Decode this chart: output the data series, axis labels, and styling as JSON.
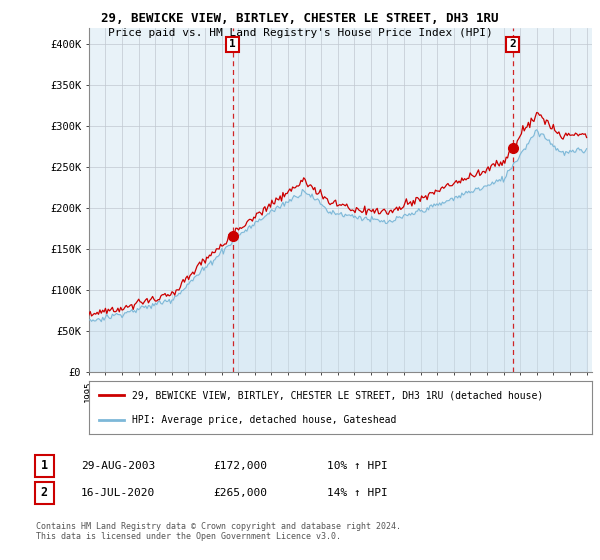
{
  "title1": "29, BEWICKE VIEW, BIRTLEY, CHESTER LE STREET, DH3 1RU",
  "title2": "Price paid vs. HM Land Registry's House Price Index (HPI)",
  "ylabel_ticks": [
    "£0",
    "£50K",
    "£100K",
    "£150K",
    "£200K",
    "£250K",
    "£300K",
    "£350K",
    "£400K"
  ],
  "ytick_values": [
    0,
    50000,
    100000,
    150000,
    200000,
    250000,
    300000,
    350000,
    400000
  ],
  "ylim": [
    0,
    420000
  ],
  "hpi_color": "#7db8d8",
  "hpi_fill_color": "#c8e0f0",
  "price_color": "#cc0000",
  "marker1_x": 2003.667,
  "marker2_x": 2020.54,
  "legend_line1": "29, BEWICKE VIEW, BIRTLEY, CHESTER LE STREET, DH3 1RU (detached house)",
  "legend_line2": "HPI: Average price, detached house, Gateshead",
  "table_row1_num": "1",
  "table_row1_date": "29-AUG-2003",
  "table_row1_price": "£172,000",
  "table_row1_hpi": "10% ↑ HPI",
  "table_row2_num": "2",
  "table_row2_date": "16-JUL-2020",
  "table_row2_price": "£265,000",
  "table_row2_hpi": "14% ↑ HPI",
  "footnote": "Contains HM Land Registry data © Crown copyright and database right 2024.\nThis data is licensed under the Open Government Licence v3.0.",
  "background_color": "#ffffff",
  "plot_bg_color": "#e8f2f8",
  "grid_color": "#c0c8d0"
}
